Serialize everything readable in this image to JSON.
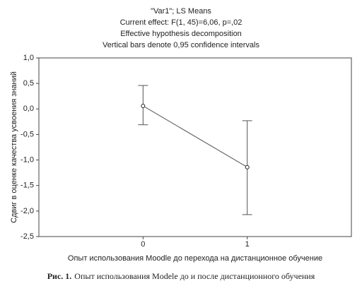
{
  "chart_data": {
    "type": "line",
    "title": [
      "\"Var1\"; LS Means",
      "Current effect: F(1, 45)=6,06, p=,02",
      "Effective hypothesis decomposition",
      "Vertical bars denote 0,95 confidence intervals"
    ],
    "x_label": "Опыт использования Moodle до перехода на дистанционное обучение",
    "y_label": "Сдвиг в оценке качества усвоения знаний",
    "x": [
      0,
      1
    ],
    "series": [
      {
        "color": "#555555",
        "values": [
          0.06,
          -1.14
        ],
        "lower": [
          -0.31,
          -2.07
        ],
        "upper": [
          0.46,
          -0.23
        ]
      }
    ],
    "xlim": [
      -1,
      2
    ],
    "xticks": [
      0,
      1
    ],
    "ylim": [
      -2.5,
      1.0
    ],
    "yticks": [
      {
        "value": -2.5,
        "label": "-2,5"
      },
      {
        "value": -2.0,
        "label": "-2,0"
      },
      {
        "value": -1.5,
        "label": "-1,5"
      },
      {
        "value": -1.0,
        "label": "-1,0"
      },
      {
        "value": -0.5,
        "label": "-0,5"
      },
      {
        "value": 0.0,
        "label": "0,0"
      },
      {
        "value": 0.5,
        "label": "0,5"
      },
      {
        "value": 1.0,
        "label": "1,0"
      }
    ]
  },
  "caption": {
    "label": "Рис. 1.",
    "text": "Опыт использования Modele до и после дистанционного обучения"
  }
}
